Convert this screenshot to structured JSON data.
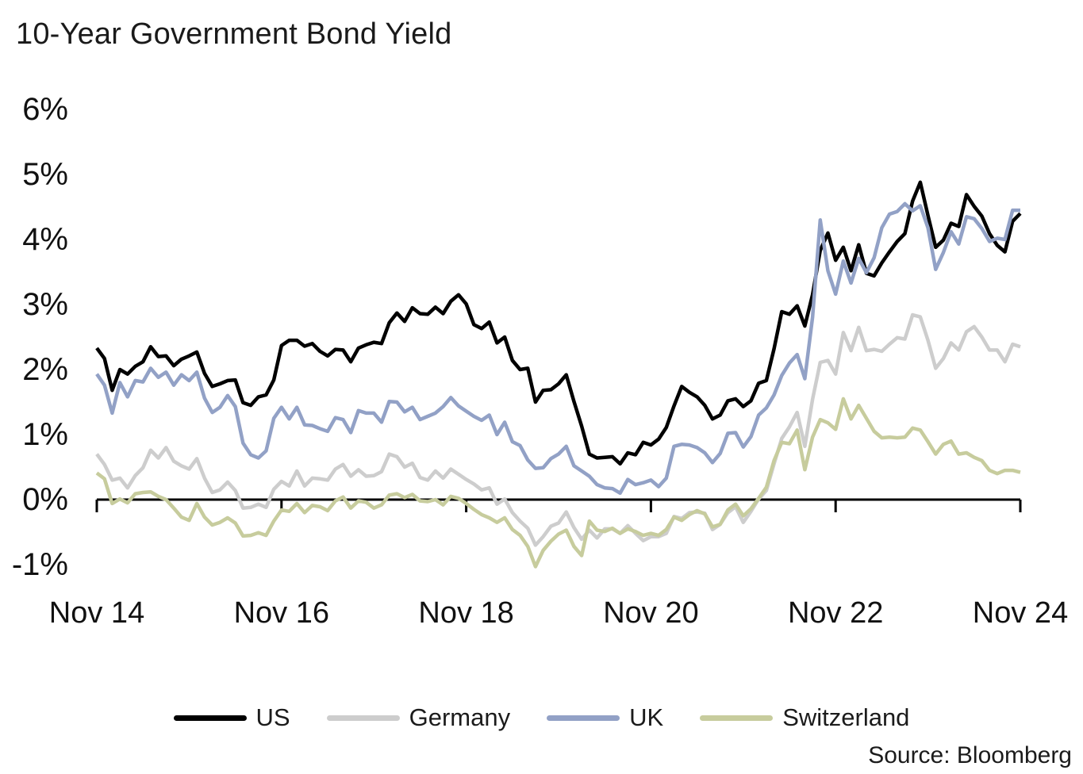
{
  "page": {
    "title": "10-Year Government Bond Yield",
    "source": "Source: Bloomberg"
  },
  "chart_data": {
    "type": "line",
    "title": "10-Year Government Bond Yield",
    "grid": false,
    "legend_position": "bottom",
    "x_start": "Nov 2014",
    "x_end": "Nov 2024",
    "x_interval": "monthly",
    "ylim": [
      -1.5,
      6
    ],
    "y_unit": "percent",
    "y_ticks": [
      {
        "value": 6,
        "label": "6%"
      },
      {
        "value": 5,
        "label": "5%"
      },
      {
        "value": 4,
        "label": "4%"
      },
      {
        "value": 3,
        "label": "3%"
      },
      {
        "value": 2,
        "label": "2%"
      },
      {
        "value": 1,
        "label": "1%"
      },
      {
        "value": 0,
        "label": "0%"
      },
      {
        "value": -1,
        "label": "-1%"
      }
    ],
    "x_ticks": [
      {
        "month_index": 0,
        "label": "Nov 14"
      },
      {
        "month_index": 24,
        "label": "Nov 16"
      },
      {
        "month_index": 48,
        "label": "Nov 18"
      },
      {
        "month_index": 72,
        "label": "Nov 20"
      },
      {
        "month_index": 96,
        "label": "Nov 22"
      },
      {
        "month_index": 120,
        "label": "Nov 24"
      }
    ],
    "axis_color": "#000000",
    "series": [
      {
        "name": "US",
        "color": "#000000",
        "values": [
          2.33,
          2.17,
          1.68,
          2.0,
          1.93,
          2.05,
          2.12,
          2.35,
          2.2,
          2.21,
          2.06,
          2.16,
          2.21,
          2.27,
          1.94,
          1.74,
          1.78,
          1.83,
          1.84,
          1.49,
          1.45,
          1.58,
          1.61,
          1.84,
          2.37,
          2.45,
          2.45,
          2.36,
          2.4,
          2.28,
          2.21,
          2.31,
          2.3,
          2.12,
          2.33,
          2.38,
          2.42,
          2.4,
          2.72,
          2.87,
          2.74,
          2.95,
          2.86,
          2.85,
          2.96,
          2.86,
          3.05,
          3.15,
          3.01,
          2.69,
          2.63,
          2.73,
          2.41,
          2.5,
          2.14,
          2.0,
          2.02,
          1.5,
          1.68,
          1.69,
          1.78,
          1.92,
          1.51,
          1.13,
          0.7,
          0.64,
          0.65,
          0.66,
          0.55,
          0.72,
          0.69,
          0.88,
          0.84,
          0.93,
          1.11,
          1.44,
          1.74,
          1.65,
          1.58,
          1.45,
          1.24,
          1.3,
          1.52,
          1.55,
          1.43,
          1.52,
          1.79,
          1.83,
          2.32,
          2.89,
          2.85,
          2.98,
          2.67,
          3.15,
          3.83,
          4.1,
          3.68,
          3.88,
          3.52,
          3.92,
          3.48,
          3.44,
          3.64,
          3.81,
          3.97,
          4.09,
          4.59,
          4.88,
          4.37,
          3.88,
          3.99,
          4.25,
          4.2,
          4.69,
          4.51,
          4.36,
          4.09,
          3.91,
          3.81,
          4.28,
          4.4
        ]
      },
      {
        "name": "Germany",
        "color": "#cdcdcd",
        "values": [
          0.7,
          0.54,
          0.3,
          0.33,
          0.18,
          0.37,
          0.49,
          0.76,
          0.64,
          0.8,
          0.59,
          0.52,
          0.47,
          0.63,
          0.33,
          0.11,
          0.15,
          0.27,
          0.14,
          -0.13,
          -0.12,
          -0.07,
          -0.12,
          0.16,
          0.28,
          0.21,
          0.44,
          0.21,
          0.33,
          0.32,
          0.3,
          0.47,
          0.54,
          0.36,
          0.46,
          0.36,
          0.37,
          0.43,
          0.7,
          0.66,
          0.5,
          0.56,
          0.34,
          0.3,
          0.44,
          0.33,
          0.47,
          0.39,
          0.31,
          0.24,
          0.15,
          0.18,
          -0.07,
          0.01,
          -0.2,
          -0.33,
          -0.44,
          -0.7,
          -0.57,
          -0.41,
          -0.36,
          -0.19,
          -0.43,
          -0.61,
          -0.47,
          -0.59,
          -0.45,
          -0.45,
          -0.52,
          -0.4,
          -0.52,
          -0.63,
          -0.57,
          -0.57,
          -0.52,
          -0.26,
          -0.29,
          -0.2,
          -0.19,
          -0.21,
          -0.46,
          -0.38,
          -0.2,
          -0.11,
          -0.35,
          -0.18,
          0.01,
          0.14,
          0.55,
          0.94,
          1.12,
          1.34,
          0.82,
          1.54,
          2.11,
          2.14,
          1.93,
          2.57,
          2.29,
          2.65,
          2.29,
          2.31,
          2.28,
          2.39,
          2.49,
          2.47,
          2.84,
          2.81,
          2.45,
          2.02,
          2.17,
          2.41,
          2.3,
          2.58,
          2.66,
          2.5,
          2.3,
          2.3,
          2.12,
          2.39,
          2.35
        ]
      },
      {
        "name": "UK",
        "color": "#92a1c6",
        "values": [
          1.93,
          1.76,
          1.33,
          1.8,
          1.58,
          1.83,
          1.81,
          2.02,
          1.88,
          1.96,
          1.76,
          1.92,
          1.83,
          1.96,
          1.56,
          1.34,
          1.42,
          1.6,
          1.43,
          0.87,
          0.69,
          0.64,
          0.75,
          1.25,
          1.42,
          1.24,
          1.42,
          1.15,
          1.14,
          1.09,
          1.05,
          1.26,
          1.23,
          1.03,
          1.37,
          1.33,
          1.33,
          1.19,
          1.51,
          1.5,
          1.35,
          1.42,
          1.23,
          1.28,
          1.33,
          1.43,
          1.57,
          1.44,
          1.36,
          1.28,
          1.22,
          1.3,
          1.0,
          1.19,
          0.89,
          0.83,
          0.61,
          0.48,
          0.49,
          0.63,
          0.7,
          0.82,
          0.52,
          0.44,
          0.36,
          0.23,
          0.18,
          0.17,
          0.1,
          0.31,
          0.23,
          0.26,
          0.3,
          0.2,
          0.33,
          0.82,
          0.85,
          0.84,
          0.8,
          0.72,
          0.57,
          0.71,
          1.02,
          1.03,
          0.81,
          0.97,
          1.3,
          1.41,
          1.61,
          1.91,
          2.1,
          2.23,
          1.86,
          2.8,
          4.3,
          3.52,
          3.16,
          3.67,
          3.33,
          3.71,
          3.49,
          3.72,
          4.18,
          4.39,
          4.43,
          4.55,
          4.44,
          4.52,
          4.18,
          3.54,
          3.8,
          4.12,
          3.93,
          4.35,
          4.32,
          4.17,
          3.97,
          4.02,
          4.0,
          4.45,
          4.45
        ]
      },
      {
        "name": "Switzerland",
        "color": "#c7cc9d",
        "values": [
          0.41,
          0.32,
          -0.06,
          0.01,
          -0.05,
          0.09,
          0.11,
          0.12,
          0.05,
          0.0,
          -0.13,
          -0.27,
          -0.32,
          -0.06,
          -0.27,
          -0.39,
          -0.35,
          -0.28,
          -0.36,
          -0.56,
          -0.55,
          -0.51,
          -0.55,
          -0.33,
          -0.16,
          -0.18,
          -0.06,
          -0.2,
          -0.09,
          -0.11,
          -0.17,
          -0.02,
          0.04,
          -0.13,
          -0.02,
          -0.04,
          -0.13,
          -0.08,
          0.07,
          0.09,
          0.03,
          0.08,
          -0.02,
          -0.03,
          0.0,
          -0.08,
          0.05,
          0.02,
          -0.06,
          -0.15,
          -0.23,
          -0.28,
          -0.35,
          -0.28,
          -0.46,
          -0.55,
          -0.72,
          -1.03,
          -0.78,
          -0.64,
          -0.53,
          -0.47,
          -0.72,
          -0.86,
          -0.33,
          -0.47,
          -0.49,
          -0.44,
          -0.52,
          -0.45,
          -0.49,
          -0.55,
          -0.52,
          -0.55,
          -0.46,
          -0.27,
          -0.32,
          -0.23,
          -0.17,
          -0.22,
          -0.42,
          -0.38,
          -0.16,
          -0.07,
          -0.25,
          -0.14,
          0.02,
          0.19,
          0.6,
          0.88,
          0.86,
          1.07,
          0.46,
          0.96,
          1.23,
          1.18,
          1.08,
          1.55,
          1.24,
          1.45,
          1.25,
          1.05,
          0.95,
          0.96,
          0.95,
          0.96,
          1.1,
          1.07,
          0.89,
          0.7,
          0.85,
          0.9,
          0.7,
          0.72,
          0.65,
          0.6,
          0.45,
          0.4,
          0.45,
          0.45,
          0.42
        ]
      }
    ]
  }
}
